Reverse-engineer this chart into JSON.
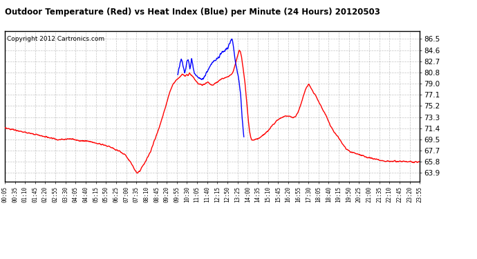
{
  "title": "Outdoor Temperature (Red) vs Heat Index (Blue) per Minute (24 Hours) 20120503",
  "copyright_text": "Copyright 2012 Cartronics.com",
  "bg_color": "#ffffff",
  "plot_bg_color": "#ffffff",
  "grid_color": "#aaaaaa",
  "temp_color": "red",
  "heat_color": "blue",
  "y_ticks": [
    63.9,
    65.8,
    67.7,
    69.5,
    71.4,
    73.3,
    75.2,
    77.1,
    79.0,
    80.8,
    82.7,
    84.6,
    86.5
  ],
  "ylim": [
    62.5,
    87.8
  ],
  "x_tick_labels": [
    "00:05",
    "00:35",
    "01:10",
    "01:45",
    "02:20",
    "02:55",
    "03:30",
    "04:05",
    "04:40",
    "05:15",
    "05:50",
    "06:25",
    "07:00",
    "07:35",
    "08:10",
    "08:45",
    "09:20",
    "09:55",
    "10:30",
    "11:05",
    "11:40",
    "12:15",
    "12:50",
    "13:25",
    "14:00",
    "14:35",
    "15:10",
    "15:45",
    "16:20",
    "16:55",
    "17:30",
    "18:05",
    "18:40",
    "19:15",
    "19:50",
    "20:25",
    "21:00",
    "21:35",
    "22:10",
    "22:45",
    "23:20",
    "23:55"
  ],
  "line_width": 1.0,
  "keypoints_temp": [
    [
      0,
      71.4
    ],
    [
      15,
      71.3
    ],
    [
      30,
      71.2
    ],
    [
      50,
      71.0
    ],
    [
      70,
      70.8
    ],
    [
      90,
      70.5
    ],
    [
      110,
      70.3
    ],
    [
      130,
      70.1
    ],
    [
      150,
      69.9
    ],
    [
      170,
      69.7
    ],
    [
      185,
      69.55
    ],
    [
      200,
      69.5
    ],
    [
      215,
      69.6
    ],
    [
      225,
      69.7
    ],
    [
      235,
      69.65
    ],
    [
      245,
      69.5
    ],
    [
      255,
      69.4
    ],
    [
      265,
      69.35
    ],
    [
      275,
      69.3
    ],
    [
      290,
      69.2
    ],
    [
      305,
      69.1
    ],
    [
      320,
      68.9
    ],
    [
      340,
      68.7
    ],
    [
      360,
      68.4
    ],
    [
      380,
      68.0
    ],
    [
      400,
      67.5
    ],
    [
      415,
      67.0
    ],
    [
      425,
      66.5
    ],
    [
      435,
      65.8
    ],
    [
      445,
      65.0
    ],
    [
      453,
      64.2
    ],
    [
      460,
      63.92
    ],
    [
      468,
      64.3
    ],
    [
      478,
      65.0
    ],
    [
      490,
      66.0
    ],
    [
      505,
      67.5
    ],
    [
      520,
      69.5
    ],
    [
      535,
      71.5
    ],
    [
      548,
      73.5
    ],
    [
      560,
      75.5
    ],
    [
      572,
      77.5
    ],
    [
      582,
      78.8
    ],
    [
      590,
      79.3
    ],
    [
      597,
      79.7
    ],
    [
      604,
      80.0
    ],
    [
      610,
      80.3
    ],
    [
      616,
      80.5
    ],
    [
      621,
      80.4
    ],
    [
      626,
      80.2
    ],
    [
      631,
      80.5
    ],
    [
      636,
      80.3
    ],
    [
      641,
      80.7
    ],
    [
      646,
      80.4
    ],
    [
      651,
      80.2
    ],
    [
      658,
      79.8
    ],
    [
      665,
      79.3
    ],
    [
      672,
      79.0
    ],
    [
      678,
      78.8
    ],
    [
      684,
      78.7
    ],
    [
      690,
      78.8
    ],
    [
      696,
      79.0
    ],
    [
      702,
      79.2
    ],
    [
      708,
      79.0
    ],
    [
      714,
      78.8
    ],
    [
      720,
      78.7
    ],
    [
      726,
      78.9
    ],
    [
      732,
      79.1
    ],
    [
      738,
      79.3
    ],
    [
      744,
      79.5
    ],
    [
      750,
      79.7
    ],
    [
      756,
      79.8
    ],
    [
      762,
      79.9
    ],
    [
      768,
      80.0
    ],
    [
      774,
      80.2
    ],
    [
      780,
      80.3
    ],
    [
      786,
      80.5
    ],
    [
      792,
      81.0
    ],
    [
      798,
      82.0
    ],
    [
      804,
      83.0
    ],
    [
      809,
      84.0
    ],
    [
      813,
      84.5
    ],
    [
      817,
      84.3
    ],
    [
      821,
      83.5
    ],
    [
      825,
      82.0
    ],
    [
      829,
      80.5
    ],
    [
      833,
      79.0
    ],
    [
      837,
      77.0
    ],
    [
      841,
      74.5
    ],
    [
      845,
      72.5
    ],
    [
      849,
      71.0
    ],
    [
      853,
      70.0
    ],
    [
      857,
      69.5
    ],
    [
      861,
      69.4
    ],
    [
      865,
      69.5
    ],
    [
      870,
      69.6
    ],
    [
      876,
      69.7
    ],
    [
      882,
      69.8
    ],
    [
      888,
      70.0
    ],
    [
      896,
      70.3
    ],
    [
      904,
      70.6
    ],
    [
      912,
      71.0
    ],
    [
      920,
      71.4
    ],
    [
      930,
      72.0
    ],
    [
      940,
      72.5
    ],
    [
      952,
      73.0
    ],
    [
      965,
      73.3
    ],
    [
      978,
      73.5
    ],
    [
      990,
      73.4
    ],
    [
      1000,
      73.2
    ],
    [
      1010,
      73.5
    ],
    [
      1020,
      74.5
    ],
    [
      1030,
      76.0
    ],
    [
      1040,
      77.5
    ],
    [
      1048,
      78.5
    ],
    [
      1054,
      78.8
    ],
    [
      1059,
      78.5
    ],
    [
      1064,
      78.0
    ],
    [
      1070,
      77.5
    ],
    [
      1078,
      77.0
    ],
    [
      1088,
      76.0
    ],
    [
      1100,
      74.8
    ],
    [
      1114,
      73.5
    ],
    [
      1128,
      72.0
    ],
    [
      1142,
      70.8
    ],
    [
      1155,
      70.0
    ],
    [
      1165,
      69.2
    ],
    [
      1175,
      68.5
    ],
    [
      1185,
      67.9
    ],
    [
      1198,
      67.5
    ],
    [
      1215,
      67.2
    ],
    [
      1235,
      66.9
    ],
    [
      1260,
      66.5
    ],
    [
      1290,
      66.2
    ],
    [
      1320,
      65.9
    ],
    [
      1350,
      65.85
    ],
    [
      1380,
      65.82
    ],
    [
      1410,
      65.8
    ],
    [
      1439,
      65.78
    ]
  ],
  "keypoints_hi": [
    [
      600,
      80.5
    ],
    [
      604,
      81.5
    ],
    [
      608,
      82.3
    ],
    [
      612,
      83.0
    ],
    [
      616,
      82.7
    ],
    [
      620,
      81.5
    ],
    [
      624,
      80.8
    ],
    [
      628,
      81.5
    ],
    [
      632,
      82.8
    ],
    [
      636,
      83.0
    ],
    [
      639,
      82.3
    ],
    [
      642,
      81.5
    ],
    [
      645,
      82.0
    ],
    [
      648,
      83.0
    ],
    [
      651,
      82.5
    ],
    [
      654,
      81.5
    ],
    [
      657,
      80.8
    ],
    [
      661,
      80.5
    ],
    [
      666,
      80.2
    ],
    [
      672,
      80.0
    ],
    [
      678,
      79.8
    ],
    [
      684,
      79.5
    ],
    [
      690,
      80.0
    ],
    [
      696,
      80.5
    ],
    [
      702,
      81.0
    ],
    [
      708,
      81.5
    ],
    [
      714,
      82.0
    ],
    [
      720,
      82.5
    ],
    [
      726,
      82.8
    ],
    [
      732,
      83.0
    ],
    [
      738,
      83.2
    ],
    [
      744,
      83.5
    ],
    [
      750,
      84.0
    ],
    [
      756,
      84.3
    ],
    [
      762,
      84.5
    ],
    [
      768,
      84.8
    ],
    [
      774,
      85.0
    ],
    [
      778,
      85.5
    ],
    [
      782,
      86.0
    ],
    [
      785,
      86.3
    ],
    [
      787,
      86.5
    ],
    [
      789,
      86.3
    ],
    [
      792,
      85.5
    ],
    [
      796,
      84.0
    ],
    [
      800,
      82.5
    ],
    [
      806,
      81.0
    ],
    [
      812,
      79.5
    ],
    [
      818,
      77.0
    ],
    [
      822,
      74.0
    ],
    [
      826,
      71.5
    ],
    [
      829,
      70.0
    ]
  ]
}
